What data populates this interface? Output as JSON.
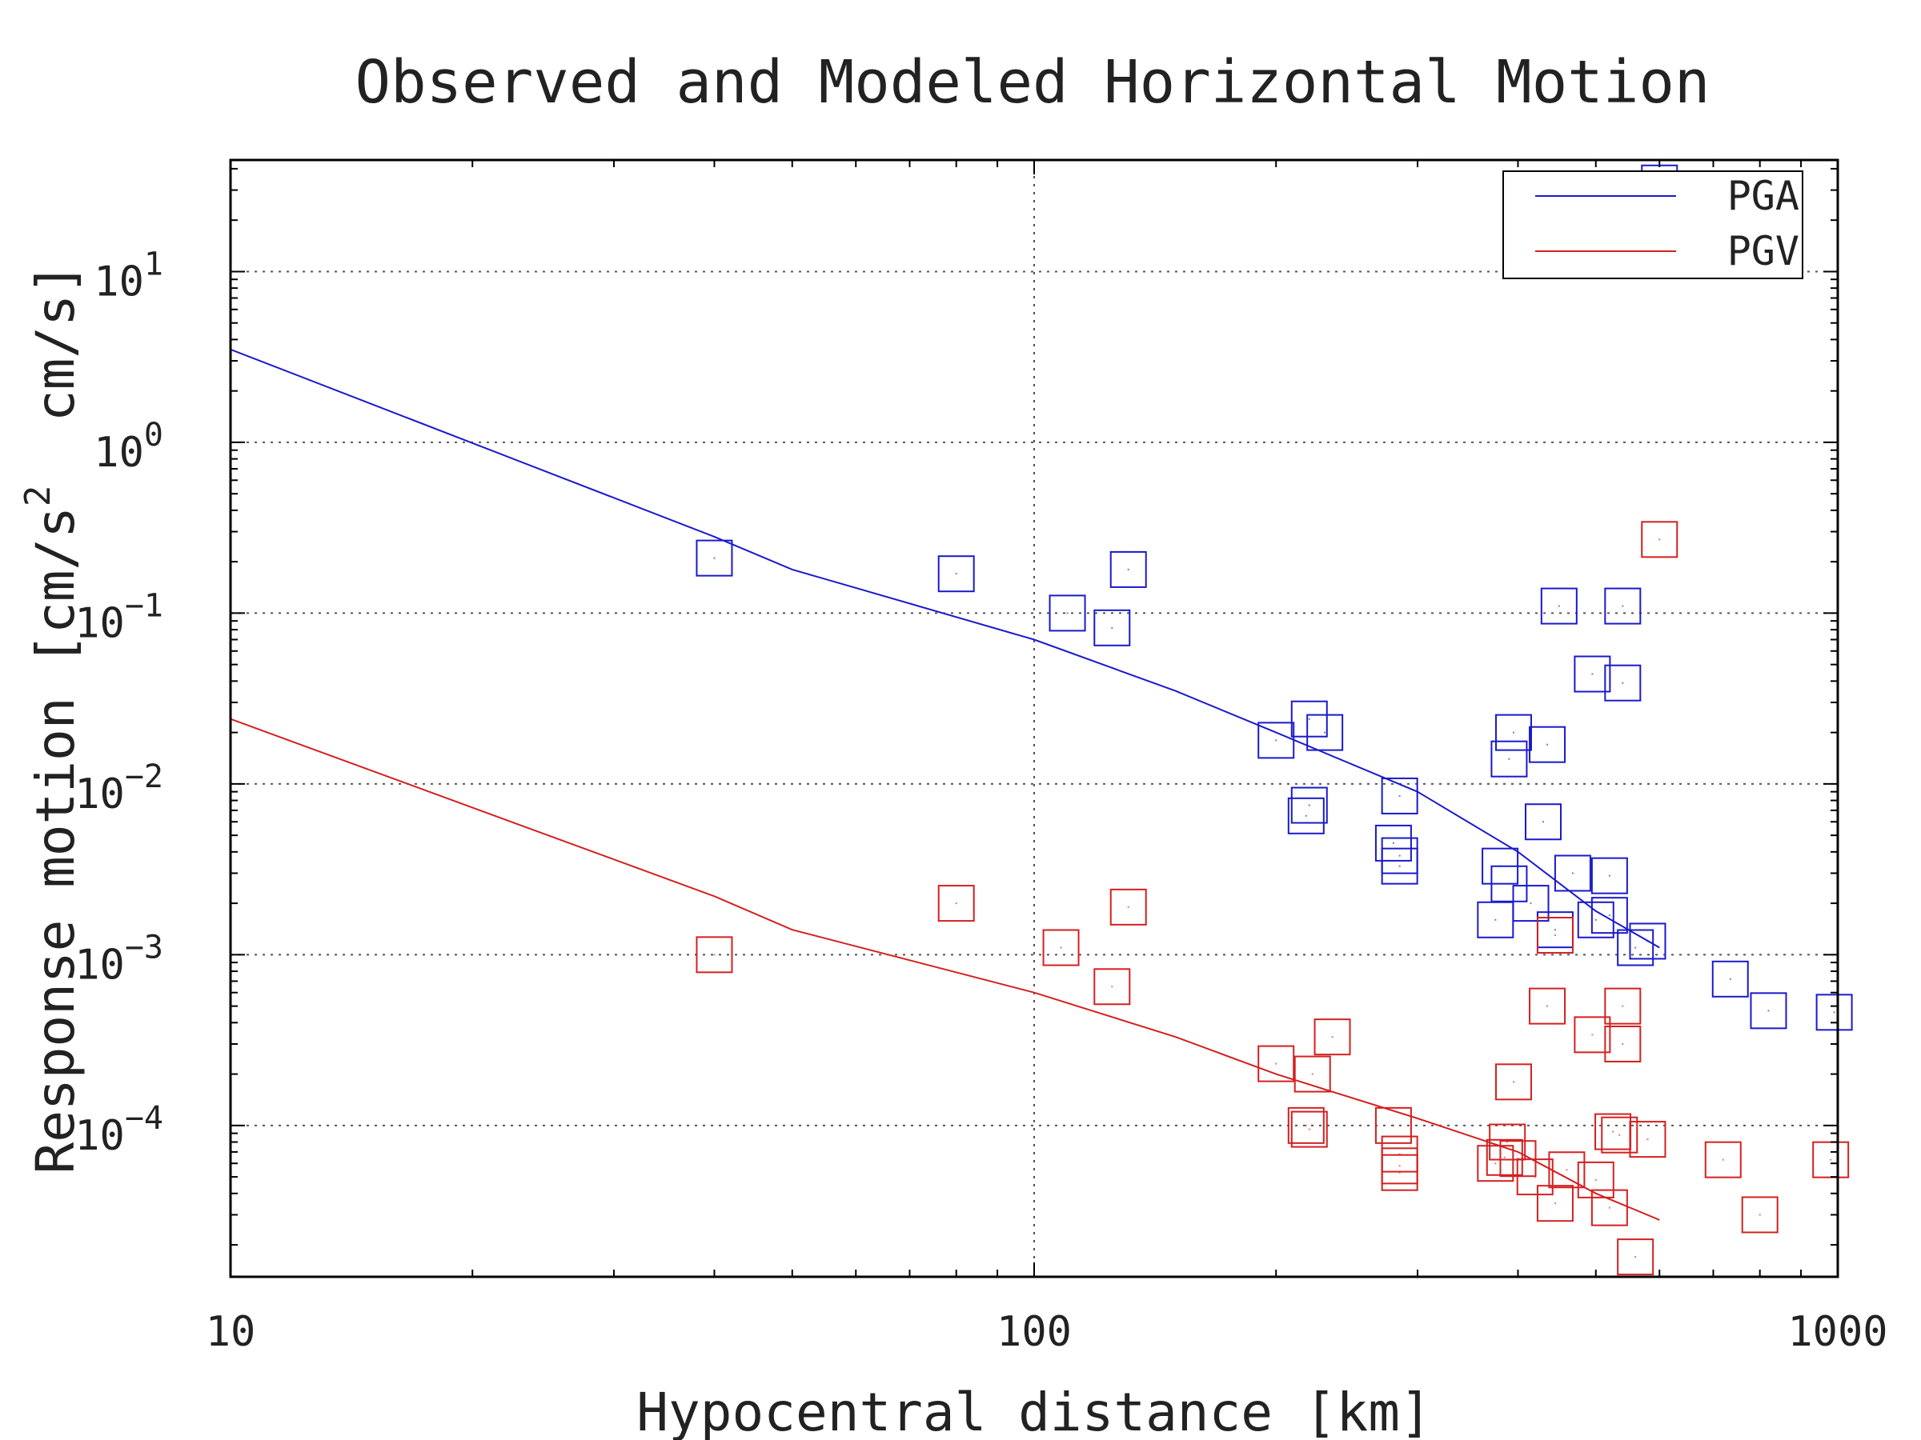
{
  "chart_data": {
    "type": "scatter",
    "title": "Observed and Modeled Horizontal Motion",
    "xlabel": "Hypocentral distance [km]",
    "ylabel_parts": [
      "Response motion [cm/s",
      "2",
      "  cm/s]"
    ],
    "x_scale": "log",
    "y_scale": "log",
    "xlim": [
      10,
      1000
    ],
    "ylim": [
      1.3e-05,
      45
    ],
    "grid": true,
    "legend_position": "top-right",
    "x_ticks": [
      {
        "value": 10,
        "label": "10"
      },
      {
        "value": 100,
        "label": "100"
      },
      {
        "value": 1000,
        "label": "1000"
      }
    ],
    "y_ticks": [
      {
        "value": 10,
        "base": "10",
        "exp": "1"
      },
      {
        "value": 1,
        "base": "10",
        "exp": "0"
      },
      {
        "value": 0.1,
        "base": "10",
        "exp": "−1"
      },
      {
        "value": 0.01,
        "base": "10",
        "exp": "−2"
      },
      {
        "value": 0.001,
        "base": "10",
        "exp": "−3"
      },
      {
        "value": 0.0001,
        "base": "10",
        "exp": "−4"
      }
    ],
    "series": [
      {
        "name": "PGA",
        "color": "#1a1acc",
        "model_line": [
          [
            10,
            3.5
          ],
          [
            40,
            0.28
          ],
          [
            50,
            0.18
          ],
          [
            100,
            0.07
          ],
          [
            150,
            0.035
          ],
          [
            200,
            0.02
          ],
          [
            300,
            0.009
          ],
          [
            400,
            0.004
          ],
          [
            500,
            0.0018
          ],
          [
            600,
            0.0011
          ]
        ],
        "observed": [
          [
            40,
            0.21
          ],
          [
            80,
            0.17
          ],
          [
            110,
            0.1
          ],
          [
            125,
            0.082
          ],
          [
            131,
            0.18
          ],
          [
            200,
            0.018
          ],
          [
            220,
            0.024
          ],
          [
            230,
            0.02
          ],
          [
            218,
            0.0065
          ],
          [
            220,
            0.0075
          ],
          [
            285,
            0.0085
          ],
          [
            280,
            0.0045
          ],
          [
            285,
            0.0038
          ],
          [
            285,
            0.0033
          ],
          [
            395,
            0.02
          ],
          [
            390,
            0.014
          ],
          [
            435,
            0.017
          ],
          [
            430,
            0.006
          ],
          [
            450,
            0.11
          ],
          [
            540,
            0.11
          ],
          [
            495,
            0.044
          ],
          [
            540,
            0.039
          ],
          [
            380,
            0.0033
          ],
          [
            390,
            0.0026
          ],
          [
            415,
            0.002
          ],
          [
            468,
            0.003
          ],
          [
            520,
            0.0029
          ],
          [
            375,
            0.0016
          ],
          [
            445,
            0.0014
          ],
          [
            500,
            0.0016
          ],
          [
            520,
            0.0017
          ],
          [
            560,
            0.0011
          ],
          [
            580,
            0.0012
          ],
          [
            600,
            33
          ],
          [
            735,
            0.00072
          ],
          [
            820,
            0.00047
          ],
          [
            990,
            0.00046
          ]
        ]
      },
      {
        "name": "PGV",
        "color": "#d42020",
        "model_line": [
          [
            10,
            0.024
          ],
          [
            40,
            0.0022
          ],
          [
            50,
            0.0014
          ],
          [
            100,
            0.0006
          ],
          [
            150,
            0.00033
          ],
          [
            200,
            0.0002
          ],
          [
            300,
            0.00011
          ],
          [
            400,
            7e-05
          ],
          [
            500,
            4e-05
          ],
          [
            600,
            2.8e-05
          ]
        ],
        "observed": [
          [
            40,
            0.001
          ],
          [
            80,
            0.002
          ],
          [
            108,
            0.0011
          ],
          [
            125,
            0.00065
          ],
          [
            131,
            0.0019
          ],
          [
            200,
            0.00023
          ],
          [
            222,
            0.0002
          ],
          [
            235,
            0.00033
          ],
          [
            218,
            0.0001
          ],
          [
            220,
            9.5e-05
          ],
          [
            280,
            0.0001
          ],
          [
            285,
            6.8e-05
          ],
          [
            285,
            5.8e-05
          ],
          [
            285,
            5.3e-05
          ],
          [
            375,
            6e-05
          ],
          [
            385,
            6.5e-05
          ],
          [
            388,
            8e-05
          ],
          [
            400,
            6.4e-05
          ],
          [
            395,
            0.00018
          ],
          [
            435,
            0.0005
          ],
          [
            420,
            5e-05
          ],
          [
            445,
            3.5e-05
          ],
          [
            460,
            5.5e-05
          ],
          [
            500,
            4.8e-05
          ],
          [
            520,
            3.3e-05
          ],
          [
            445,
            0.0013
          ],
          [
            495,
            0.00034
          ],
          [
            540,
            0.0005
          ],
          [
            540,
            0.0003
          ],
          [
            525,
            9.2e-05
          ],
          [
            535,
            8.8e-05
          ],
          [
            580,
            8.3e-05
          ],
          [
            560,
            1.7e-05
          ],
          [
            600,
            0.27
          ],
          [
            720,
            6.3e-05
          ],
          [
            800,
            3e-05
          ],
          [
            980,
            6.3e-05
          ]
        ]
      }
    ]
  }
}
